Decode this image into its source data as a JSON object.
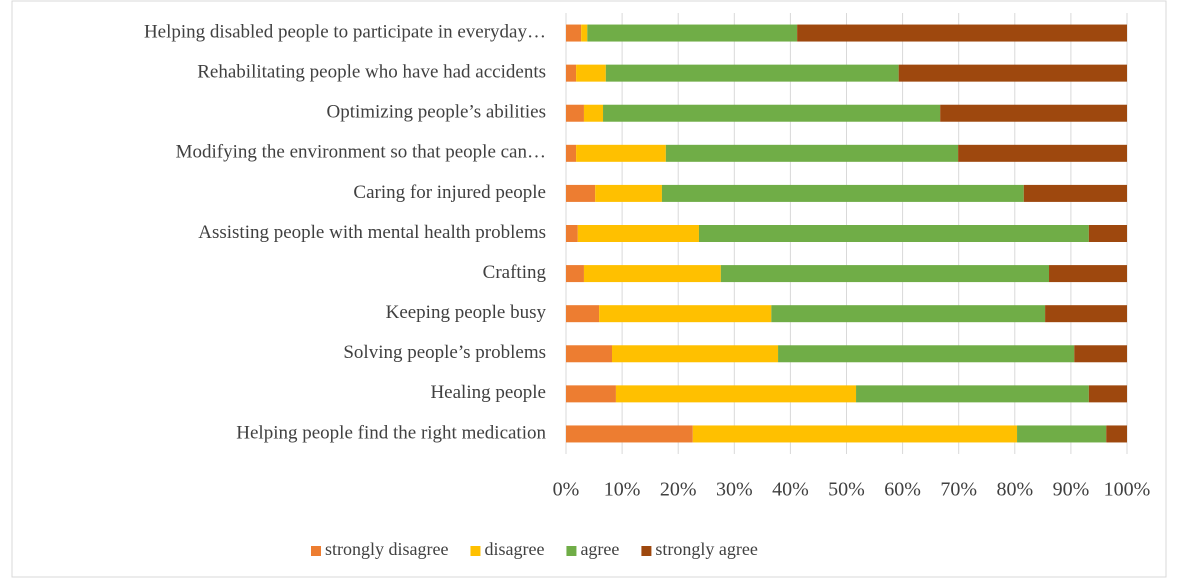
{
  "chart_data": {
    "type": "bar",
    "orientation": "horizontal",
    "stacked": true,
    "categories": [
      "Helping disabled people to participate in everyday…",
      "Rehabilitating people who have had accidents",
      "Optimizing  people’s abilities",
      "Modifying the environment so that people can…",
      "Caring for injured people",
      "Assisting people with mental health problems",
      "Crafting",
      "Keeping people busy",
      "Solving people’s problems",
      "Healing people",
      "Helping people find the right medication"
    ],
    "series": [
      {
        "name": "strongly disagree",
        "color": "#ed7d31",
        "values": [
          2.7,
          1.8,
          3.2,
          1.8,
          5.2,
          2.1,
          3.2,
          5.9,
          8.2,
          8.9,
          22.6
        ]
      },
      {
        "name": "disagree",
        "color": "#ffc000",
        "values": [
          1.1,
          5.3,
          3.4,
          16.0,
          11.9,
          21.6,
          24.4,
          30.7,
          29.6,
          42.8,
          57.8
        ]
      },
      {
        "name": "agree",
        "color": "#70ad47",
        "values": [
          37.4,
          52.2,
          60.1,
          52.1,
          64.5,
          69.5,
          58.5,
          48.8,
          52.8,
          41.5,
          15.9
        ]
      },
      {
        "name": "strongly agree",
        "color": "#9e480e",
        "values": [
          58.8,
          40.7,
          33.3,
          30.1,
          18.4,
          6.8,
          13.9,
          14.6,
          9.4,
          6.8,
          3.7
        ]
      }
    ],
    "xlim": [
      0,
      100
    ],
    "xticks": [
      {
        "value": 0,
        "label": "0%"
      },
      {
        "value": 10,
        "label": "10%"
      },
      {
        "value": 20,
        "label": "20%"
      },
      {
        "value": 30,
        "label": "30%"
      },
      {
        "value": 40,
        "label": "40%"
      },
      {
        "value": 50,
        "label": "50%"
      },
      {
        "value": 60,
        "label": "60%"
      },
      {
        "value": 70,
        "label": "70%"
      },
      {
        "value": 80,
        "label": "80%"
      },
      {
        "value": 90,
        "label": "90%"
      },
      {
        "value": 100,
        "label": "100%"
      }
    ],
    "grid": true,
    "legend": "bottom"
  }
}
